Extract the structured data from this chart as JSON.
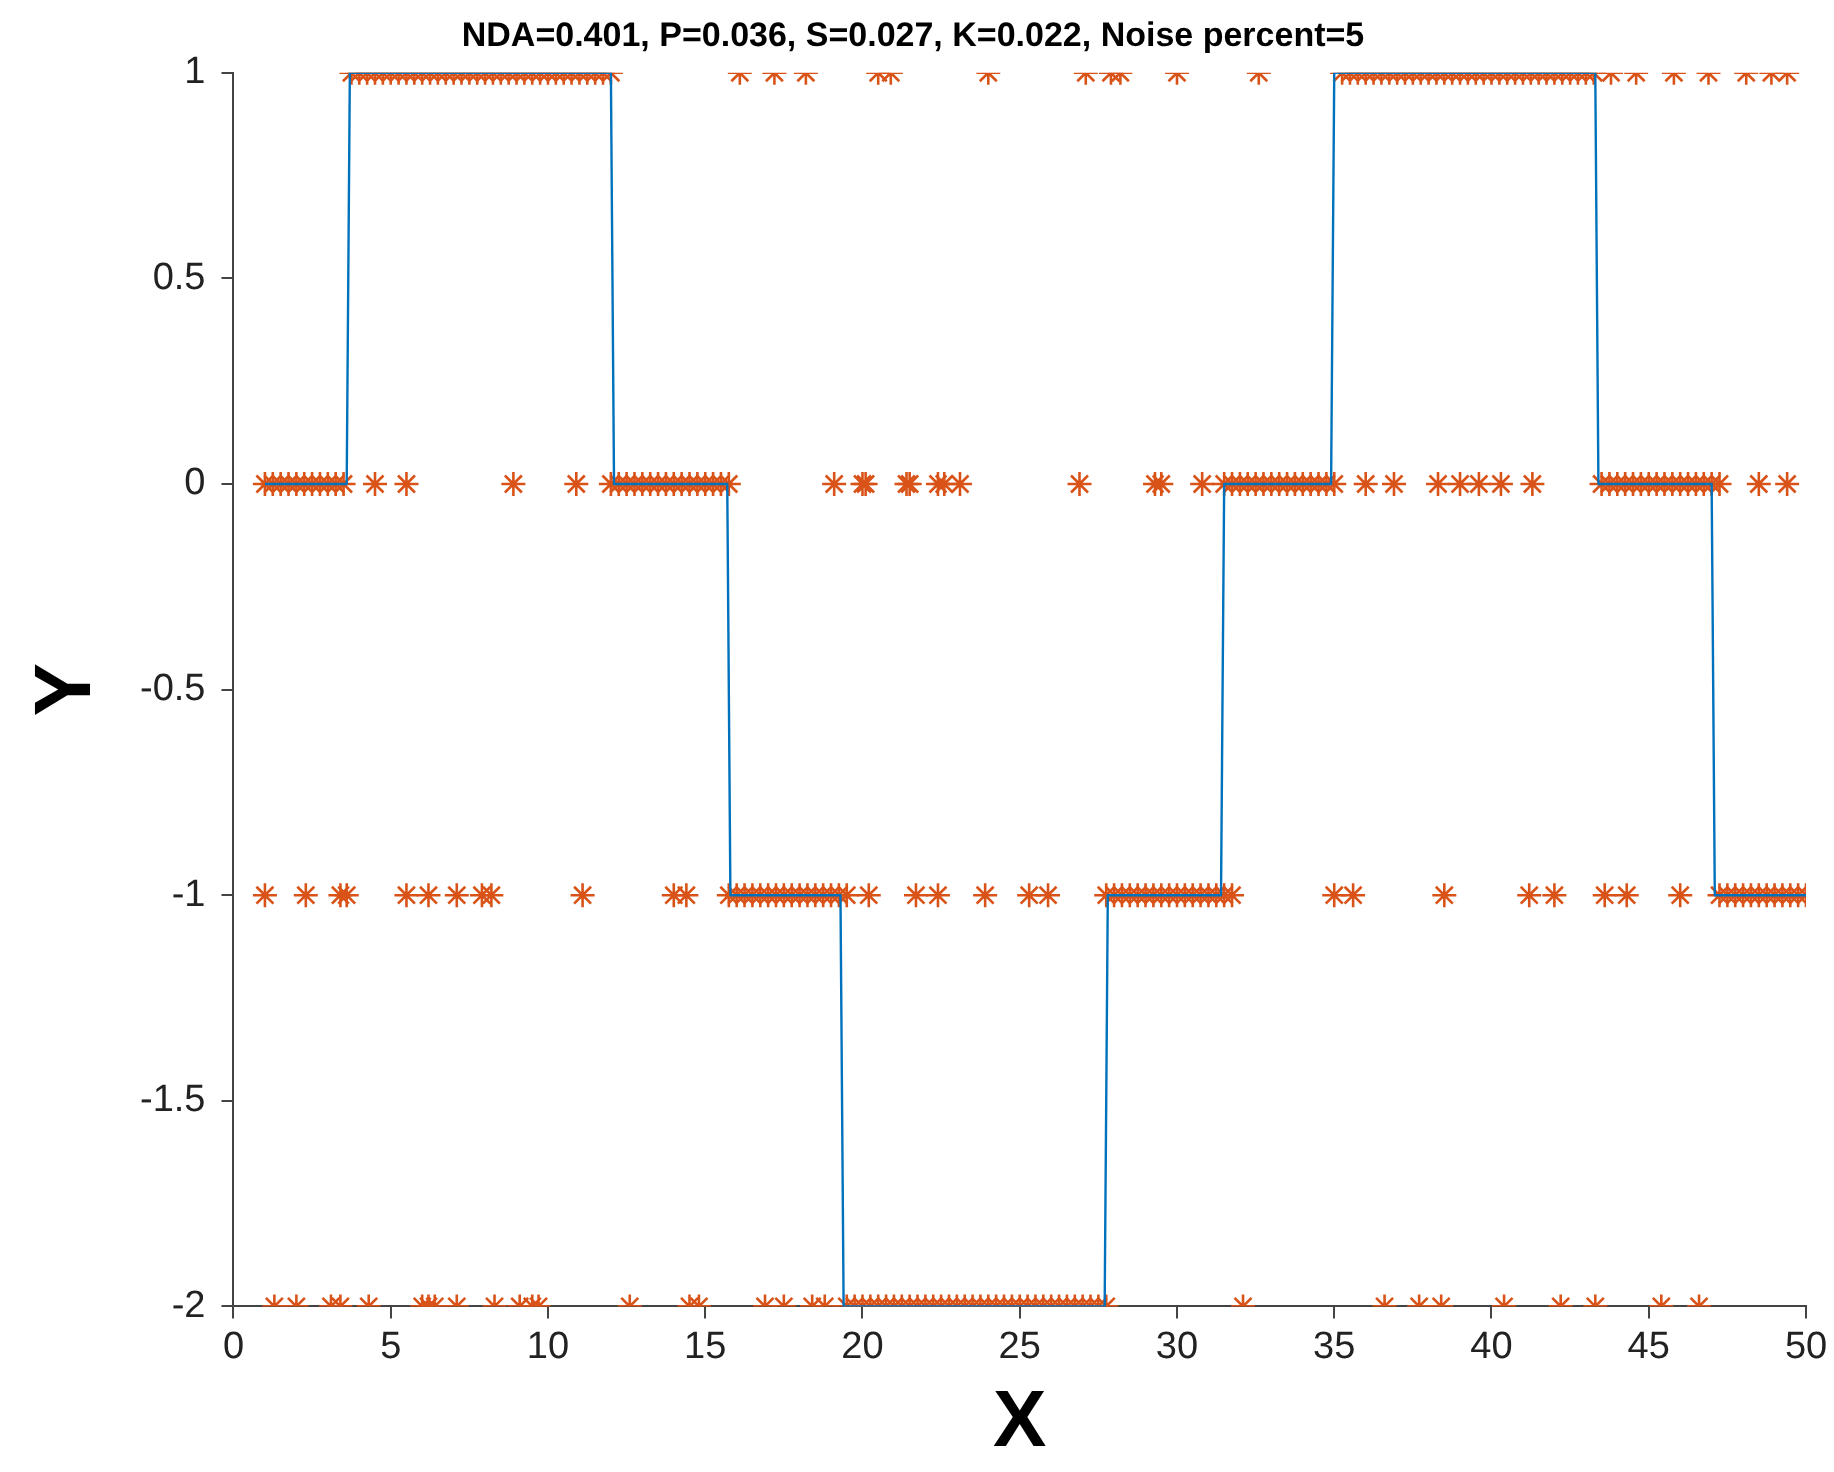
{
  "chart_data": {
    "type": "scatter",
    "title": "NDA=0.401, P=0.036, S=0.027, K=0.022, Noise percent=5",
    "xlabel": "X",
    "ylabel": "Y",
    "xlim": [
      0,
      50
    ],
    "xticks": [
      0,
      5,
      10,
      15,
      20,
      25,
      30,
      35,
      40,
      45,
      50
    ],
    "ylim": [
      -2,
      1
    ],
    "yticks": [
      -2,
      -1.5,
      -1,
      -0.5,
      0,
      0.5,
      1
    ],
    "grid": false,
    "legend": false,
    "marker": "cross",
    "series": [
      {
        "type": "line",
        "color": "#0072bd",
        "x": [
          1,
          3.6,
          3.7,
          12.0,
          12.1,
          15.7,
          15.8,
          19.3,
          19.4,
          27.7,
          27.8,
          31.4,
          31.5,
          34.9,
          35.0,
          43.3,
          43.4,
          47.0,
          47.1,
          50
        ],
        "values": [
          0,
          0,
          1,
          1,
          0,
          0,
          -1,
          -1,
          -2,
          -2,
          -1,
          -1,
          0,
          0,
          1,
          1,
          0,
          0,
          -1,
          -1
        ],
        "marker": "none",
        "line_style": "solid"
      },
      {
        "type": "scatter",
        "color": "#d95319",
        "x": [
          3.75,
          4,
          4.25,
          4.5,
          4.75,
          5,
          5.25,
          5.5,
          5.75,
          6,
          6.25,
          6.5,
          6.75,
          7,
          7.25,
          7.5,
          7.75,
          8,
          8.25,
          8.5,
          8.75,
          9,
          9.25,
          9.5,
          9.75,
          10,
          10.25,
          10.5,
          10.75,
          11,
          11.25,
          11.5,
          11.75,
          12,
          16.1,
          17.2,
          18.2,
          20.5,
          20.9,
          24.0,
          27.1,
          27.9,
          28.2,
          30.0,
          32.6,
          35.25,
          35.5,
          35.75,
          36,
          36.25,
          36.5,
          36.75,
          37,
          37.25,
          37.5,
          37.75,
          38,
          38.25,
          38.5,
          38.75,
          39,
          39.25,
          39.5,
          39.75,
          40,
          40.25,
          40.5,
          40.75,
          41,
          41.25,
          41.5,
          41.75,
          42,
          42.25,
          42.5,
          42.75,
          43,
          43.25,
          43.8,
          44.6,
          45.8,
          46.9,
          48.1,
          48.9,
          49.4
        ],
        "values": [
          1,
          1,
          1,
          1,
          1,
          1,
          1,
          1,
          1,
          1,
          1,
          1,
          1,
          1,
          1,
          1,
          1,
          1,
          1,
          1,
          1,
          1,
          1,
          1,
          1,
          1,
          1,
          1,
          1,
          1,
          1,
          1,
          1,
          1,
          1,
          1,
          1,
          1,
          1,
          1,
          1,
          1,
          1,
          1,
          1,
          1,
          1,
          1,
          1,
          1,
          1,
          1,
          1,
          1,
          1,
          1,
          1,
          1,
          1,
          1,
          1,
          1,
          1,
          1,
          1,
          1,
          1,
          1,
          1,
          1,
          1,
          1,
          1,
          1,
          1,
          1,
          1,
          1,
          1,
          1,
          1,
          1,
          1,
          1,
          1
        ]
      },
      {
        "type": "scatter",
        "color": "#d95319",
        "x": [
          1,
          1.25,
          1.5,
          1.75,
          2,
          2.25,
          2.5,
          2.75,
          3,
          3.25,
          3.5,
          4.5,
          5.5,
          8.9,
          10.9,
          12,
          12.25,
          12.5,
          12.75,
          13,
          13.25,
          13.5,
          13.75,
          14,
          14.25,
          14.5,
          14.75,
          15,
          15.25,
          15.5,
          15.75,
          19.1,
          20.0,
          20.1,
          21.4,
          21.5,
          22.4,
          22.6,
          23.1,
          26.9,
          29.3,
          29.5,
          30.8,
          31.5,
          31.75,
          32,
          32.25,
          32.5,
          32.75,
          33,
          33.25,
          33.5,
          33.75,
          34,
          34.25,
          34.5,
          34.75,
          35,
          36.0,
          36.9,
          38.3,
          39.0,
          39.6,
          40.3,
          41.3,
          43.5,
          43.75,
          44,
          44.25,
          44.5,
          44.75,
          45,
          45.25,
          45.5,
          45.75,
          46,
          46.25,
          46.5,
          46.75,
          47,
          47.25,
          48.5,
          49.4
        ],
        "values": [
          0,
          0,
          0,
          0,
          0,
          0,
          0,
          0,
          0,
          0,
          0,
          0,
          0,
          0,
          0,
          0,
          0,
          0,
          0,
          0,
          0,
          0,
          0,
          0,
          0,
          0,
          0,
          0,
          0,
          0,
          0,
          0,
          0,
          0,
          0,
          0,
          0,
          0,
          0,
          0,
          0,
          0,
          0,
          0,
          0,
          0,
          0,
          0,
          0,
          0,
          0,
          0,
          0,
          0,
          0,
          0,
          0,
          0,
          0,
          0,
          0,
          0,
          0,
          0,
          0,
          0,
          0,
          0,
          0,
          0,
          0,
          0,
          0,
          0,
          0,
          0,
          0,
          0,
          0,
          0,
          0,
          0,
          0
        ]
      },
      {
        "type": "scatter",
        "color": "#d95319",
        "x": [
          1.0,
          2.3,
          3.4,
          3.6,
          5.5,
          6.2,
          7.1,
          7.9,
          8.2,
          11.1,
          14.0,
          14.4,
          15.75,
          16,
          16.25,
          16.5,
          16.75,
          17,
          17.25,
          17.5,
          17.75,
          18,
          18.25,
          18.5,
          18.75,
          19,
          19.25,
          19.5,
          20.2,
          21.7,
          22.4,
          23.9,
          25.3,
          25.9,
          27.75,
          28,
          28.25,
          28.5,
          28.75,
          29,
          29.25,
          29.5,
          29.75,
          30,
          30.25,
          30.5,
          30.75,
          31,
          31.25,
          31.5,
          31.75,
          35.0,
          35.6,
          38.5,
          41.2,
          42.0,
          43.6,
          44.3,
          46.0,
          47.25,
          47.5,
          47.75,
          48,
          48.25,
          48.5,
          48.75,
          49,
          49.25,
          49.5,
          49.75,
          50
        ],
        "values": [
          -1,
          -1,
          -1,
          -1,
          -1,
          -1,
          -1,
          -1,
          -1,
          -1,
          -1,
          -1,
          -1,
          -1,
          -1,
          -1,
          -1,
          -1,
          -1,
          -1,
          -1,
          -1,
          -1,
          -1,
          -1,
          -1,
          -1,
          -1,
          -1,
          -1,
          -1,
          -1,
          -1,
          -1,
          -1,
          -1,
          -1,
          -1,
          -1,
          -1,
          -1,
          -1,
          -1,
          -1,
          -1,
          -1,
          -1,
          -1,
          -1,
          -1,
          -1,
          -1,
          -1,
          -1,
          -1,
          -1,
          -1,
          -1,
          -1,
          -1,
          -1,
          -1,
          -1,
          -1,
          -1,
          -1,
          -1,
          -1,
          -1,
          -1,
          -1
        ]
      },
      {
        "type": "scatter",
        "color": "#d95319",
        "x": [
          1.3,
          2.0,
          3.1,
          3.4,
          4.3,
          6.0,
          6.2,
          6.4,
          7.1,
          8.3,
          9.1,
          9.5,
          9.7,
          12.6,
          14.5,
          14.8,
          16.9,
          17.5,
          18.4,
          18.8,
          19.5,
          19.75,
          20,
          20.25,
          20.5,
          20.75,
          21,
          21.25,
          21.5,
          21.75,
          22,
          22.25,
          22.5,
          22.75,
          23,
          23.25,
          23.5,
          23.75,
          24,
          24.25,
          24.5,
          24.75,
          25,
          25.25,
          25.5,
          25.75,
          26,
          26.25,
          26.5,
          26.75,
          27,
          27.25,
          27.5,
          27.75,
          32.1,
          36.6,
          37.7,
          38.4,
          40.4,
          42.2,
          43.3,
          45.4,
          46.6
        ],
        "values": [
          -2,
          -2,
          -2,
          -2,
          -2,
          -2,
          -2,
          -2,
          -2,
          -2,
          -2,
          -2,
          -2,
          -2,
          -2,
          -2,
          -2,
          -2,
          -2,
          -2,
          -2,
          -2,
          -2,
          -2,
          -2,
          -2,
          -2,
          -2,
          -2,
          -2,
          -2,
          -2,
          -2,
          -2,
          -2,
          -2,
          -2,
          -2,
          -2,
          -2,
          -2,
          -2,
          -2,
          -2,
          -2,
          -2,
          -2,
          -2,
          -2,
          -2,
          -2,
          -2,
          -2,
          -2,
          -2,
          -2,
          -2,
          -2,
          -2,
          -2,
          -2,
          -2,
          -2
        ]
      }
    ]
  }
}
